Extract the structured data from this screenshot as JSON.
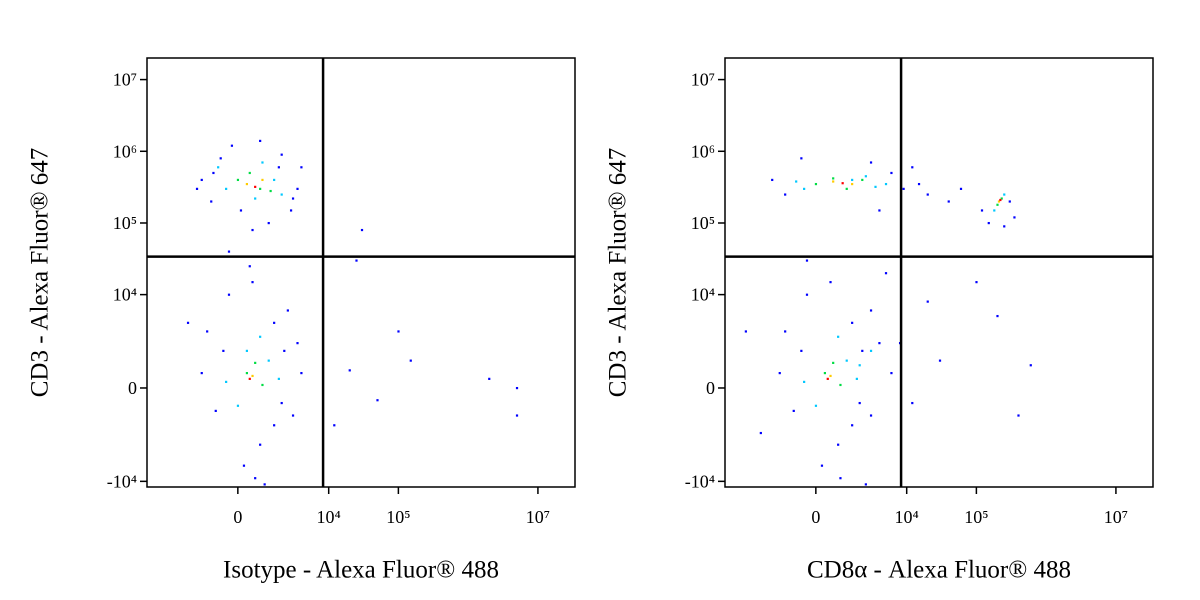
{
  "chart_data": [
    {
      "type": "scatter",
      "x_label": "Isotype - Alexa Fluor® 488",
      "y_label": "CD3 - Alexa Fluor® 647",
      "scale": "biexponential",
      "xlim": [
        -10000,
        34000000
      ],
      "ylim": [
        -12000,
        20000000
      ],
      "xticks": [
        0,
        {
          "value": 10000,
          "label": "10⁴"
        },
        {
          "value": 100000,
          "label": "10⁵"
        },
        {
          "value": 10000000,
          "label": "10⁷"
        }
      ],
      "yticks": [
        {
          "value": -10000,
          "label": "-10⁴"
        },
        0,
        {
          "value": 10000,
          "label": "10⁴"
        },
        {
          "value": 100000,
          "label": "10⁵"
        },
        {
          "value": 1000000,
          "label": "10⁶"
        },
        {
          "value": 10000000,
          "label": "10⁷"
        }
      ],
      "gates": {
        "x": 8300,
        "y": 34000
      },
      "series": [
        {
          "color": "#0000ff",
          "x": [
            -1500,
            -1000,
            -600,
            3500,
            2800,
            1200,
            -200,
            2000,
            4000,
            -900,
            500,
            1800,
            -1800,
            3000,
            800,
            100,
            -1500,
            -800,
            3500,
            2500,
            1500,
            -300,
            4000,
            2000,
            -1200,
            800,
            200,
            500,
            3000,
            -500,
            1500,
            2200,
            400,
            600,
            20000,
            50000,
            150000,
            5000000,
            5000000,
            2000000,
            12000,
            30000,
            25000,
            100000,
            -2500,
            1000,
            -300
          ],
          "y": [
            400000,
            200000,
            800000,
            300000,
            150000,
            100000,
            1200000,
            900000,
            600000,
            500000,
            80000,
            600000,
            300000,
            220000,
            1400000,
            150000,
            500,
            -800,
            2000,
            6000,
            -1500,
            10000,
            500,
            -500,
            3000,
            -3000,
            -6000,
            15000,
            -1000,
            1500,
            4000,
            1500,
            25000,
            -9000,
            600,
            -400,
            1000,
            0,
            -1000,
            300,
            -1500,
            80000,
            30000,
            3000,
            4000,
            -11000,
            40000
          ]
        },
        {
          "color": "#00c8ff",
          "x": [
            -400,
            1500,
            600,
            2000,
            -700,
            900,
            -400,
            1200,
            800,
            1800,
            0,
            300
          ],
          "y": [
            300000,
            400000,
            220000,
            250000,
            600000,
            700000,
            200,
            1000,
            2500,
            300,
            -600,
            1500
          ]
        },
        {
          "color": "#00dd44",
          "x": [
            0,
            800,
            400,
            1300,
            300,
            900,
            600
          ],
          "y": [
            400000,
            300000,
            500000,
            280000,
            500,
            100,
            900
          ]
        },
        {
          "color": "#ffcc00",
          "x": [
            300,
            900,
            500
          ],
          "y": [
            350000,
            400000,
            400
          ]
        },
        {
          "color": "#ff0000",
          "x": [
            600,
            400
          ],
          "y": [
            320000,
            300
          ]
        }
      ]
    },
    {
      "type": "scatter",
      "x_label": "CD8α - Alexa Fluor® 488",
      "y_label": "CD3 - Alexa Fluor® 647",
      "scale": "biexponential",
      "xlim": [
        -10000,
        34000000
      ],
      "ylim": [
        -12000,
        20000000
      ],
      "xticks": [
        0,
        {
          "value": 10000,
          "label": "10⁴"
        },
        {
          "value": 100000,
          "label": "10⁵"
        },
        {
          "value": 10000000,
          "label": "10⁷"
        }
      ],
      "yticks": [
        {
          "value": -10000,
          "label": "-10⁴"
        },
        0,
        {
          "value": 10000,
          "label": "10⁴"
        },
        {
          "value": 100000,
          "label": "10⁵"
        },
        {
          "value": 1000000,
          "label": "10⁶"
        },
        {
          "value": 10000000,
          "label": "10⁷"
        }
      ],
      "gates": {
        "x": 8300,
        "y": 34000
      },
      "series": [
        {
          "color": "#0000ff",
          "x": [
            -2000,
            -1200,
            6000,
            9000,
            15000,
            4000,
            -500,
            3000,
            12000,
            20000,
            40000,
            60000,
            150000,
            120000,
            300000,
            350000,
            250000,
            -1500,
            -800,
            4000,
            3000,
            1500,
            -300,
            6000,
            2000,
            -1200,
            800,
            200,
            500,
            3000,
            -500,
            1500,
            2200,
            8000,
            12000,
            20000,
            30000,
            200000,
            600000,
            400000,
            100000,
            -5000,
            -3000,
            900,
            2500,
            -300,
            5000
          ],
          "y": [
            400000,
            250000,
            500000,
            300000,
            350000,
            150000,
            800000,
            700000,
            600000,
            250000,
            200000,
            300000,
            100000,
            150000,
            200000,
            120000,
            90000,
            500,
            -800,
            2000,
            6000,
            -1500,
            10000,
            500,
            -500,
            3000,
            -3000,
            -6000,
            15000,
            -1000,
            1500,
            4000,
            1500,
            2000,
            -500,
            8000,
            1000,
            5000,
            800,
            -1000,
            15000,
            3000,
            -2000,
            -9000,
            -11000,
            30000,
            20000
          ]
        },
        {
          "color": "#00c8ff",
          "x": [
            -400,
            1500,
            3500,
            2500,
            -700,
            5000,
            180000,
            250000,
            -400,
            1200,
            800,
            1800,
            0,
            3000,
            2000
          ],
          "y": [
            300000,
            400000,
            320000,
            450000,
            380000,
            350000,
            150000,
            250000,
            200,
            1000,
            2500,
            300,
            -600,
            1500,
            800
          ]
        },
        {
          "color": "#00dd44",
          "x": [
            0,
            1200,
            2200,
            600,
            200000,
            230000,
            300,
            900,
            600
          ],
          "y": [
            350000,
            300000,
            400000,
            420000,
            180000,
            220000,
            500,
            100,
            900
          ]
        },
        {
          "color": "#ffcc00",
          "x": [
            600,
            1500,
            210000,
            500
          ],
          "y": [
            380000,
            350000,
            200000,
            400
          ]
        },
        {
          "color": "#ff0000",
          "x": [
            1000,
            220000,
            400
          ],
          "y": [
            360000,
            210000,
            300
          ]
        }
      ]
    }
  ]
}
